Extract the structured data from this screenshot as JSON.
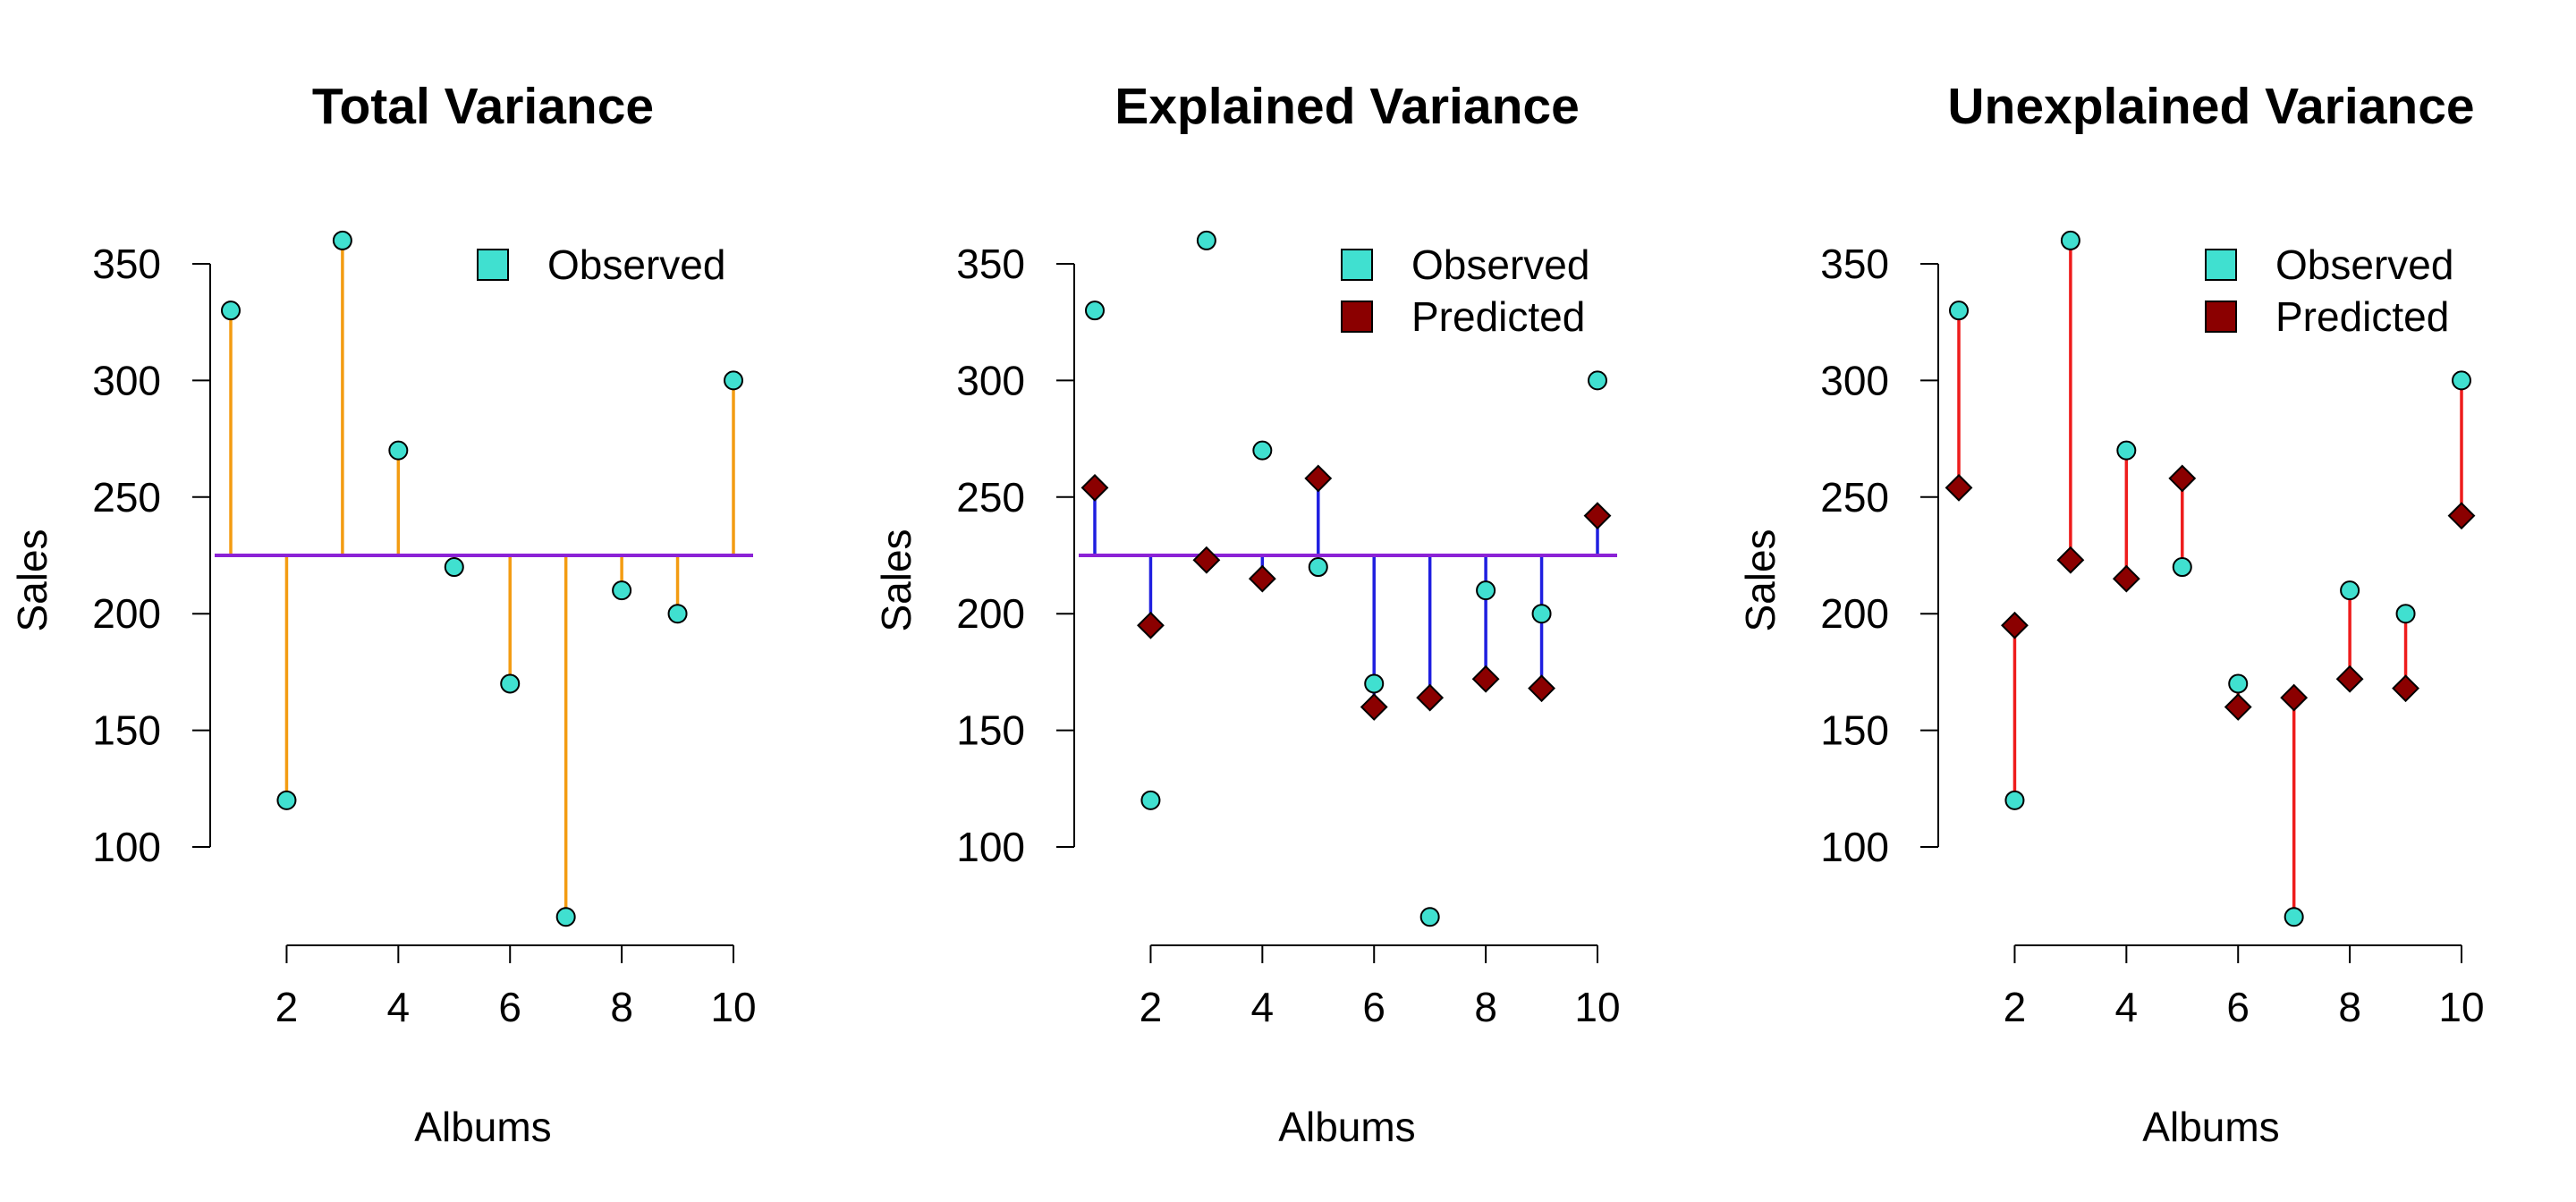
{
  "colors": {
    "observed": "#40E0D0",
    "predicted": "#8B0000",
    "total_segment": "#F39C12",
    "explained_segment": "#1F1FE0",
    "unexplained_segment": "#EE1C1C",
    "mean_line": "#8B22D6",
    "axis": "#000000"
  },
  "chart_data": [
    {
      "type": "scatter",
      "title": "Total Variance",
      "xlabel": "Albums",
      "ylabel": "Sales",
      "xlim": [
        1,
        10
      ],
      "ylim": [
        70,
        360
      ],
      "x_ticks": [
        2,
        4,
        6,
        8,
        10
      ],
      "y_ticks": [
        100,
        150,
        200,
        250,
        300,
        350
      ],
      "mean": 225,
      "segments": "observed-to-mean",
      "segment_color": "total_segment",
      "show_mean_line": true,
      "legend": [
        {
          "label": "Observed",
          "marker": "observed"
        }
      ],
      "legend_position": "top-right",
      "grid": false,
      "x": [
        1,
        2,
        3,
        4,
        5,
        6,
        7,
        8,
        9,
        10
      ],
      "observed": [
        330,
        120,
        360,
        270,
        220,
        170,
        70,
        210,
        200,
        300
      ]
    },
    {
      "type": "scatter",
      "title": "Explained Variance",
      "xlabel": "Albums",
      "ylabel": "Sales",
      "xlim": [
        1,
        10
      ],
      "ylim": [
        70,
        360
      ],
      "x_ticks": [
        2,
        4,
        6,
        8,
        10
      ],
      "y_ticks": [
        100,
        150,
        200,
        250,
        300,
        350
      ],
      "mean": 225,
      "segments": "predicted-to-mean",
      "segment_color": "explained_segment",
      "show_mean_line": true,
      "legend": [
        {
          "label": "Observed",
          "marker": "observed"
        },
        {
          "label": "Predicted",
          "marker": "predicted"
        }
      ],
      "legend_position": "top-right",
      "grid": false,
      "x": [
        1,
        2,
        3,
        4,
        5,
        6,
        7,
        8,
        9,
        10
      ],
      "observed": [
        330,
        120,
        360,
        270,
        220,
        170,
        70,
        210,
        200,
        300
      ],
      "predicted": [
        254,
        195,
        223,
        215,
        258,
        160,
        164,
        172,
        168,
        242
      ]
    },
    {
      "type": "scatter",
      "title": "Unexplained Variance",
      "xlabel": "Albums",
      "ylabel": "Sales",
      "xlim": [
        1,
        10
      ],
      "ylim": [
        70,
        360
      ],
      "x_ticks": [
        2,
        4,
        6,
        8,
        10
      ],
      "y_ticks": [
        100,
        150,
        200,
        250,
        300,
        350
      ],
      "mean": 225,
      "segments": "observed-to-predicted",
      "segment_color": "unexplained_segment",
      "show_mean_line": false,
      "legend": [
        {
          "label": "Observed",
          "marker": "observed"
        },
        {
          "label": "Predicted",
          "marker": "predicted"
        }
      ],
      "legend_position": "top-right",
      "grid": false,
      "x": [
        1,
        2,
        3,
        4,
        5,
        6,
        7,
        8,
        9,
        10
      ],
      "observed": [
        330,
        120,
        360,
        270,
        220,
        170,
        70,
        210,
        200,
        300
      ],
      "predicted": [
        254,
        195,
        223,
        215,
        258,
        160,
        164,
        172,
        168,
        242
      ]
    }
  ]
}
